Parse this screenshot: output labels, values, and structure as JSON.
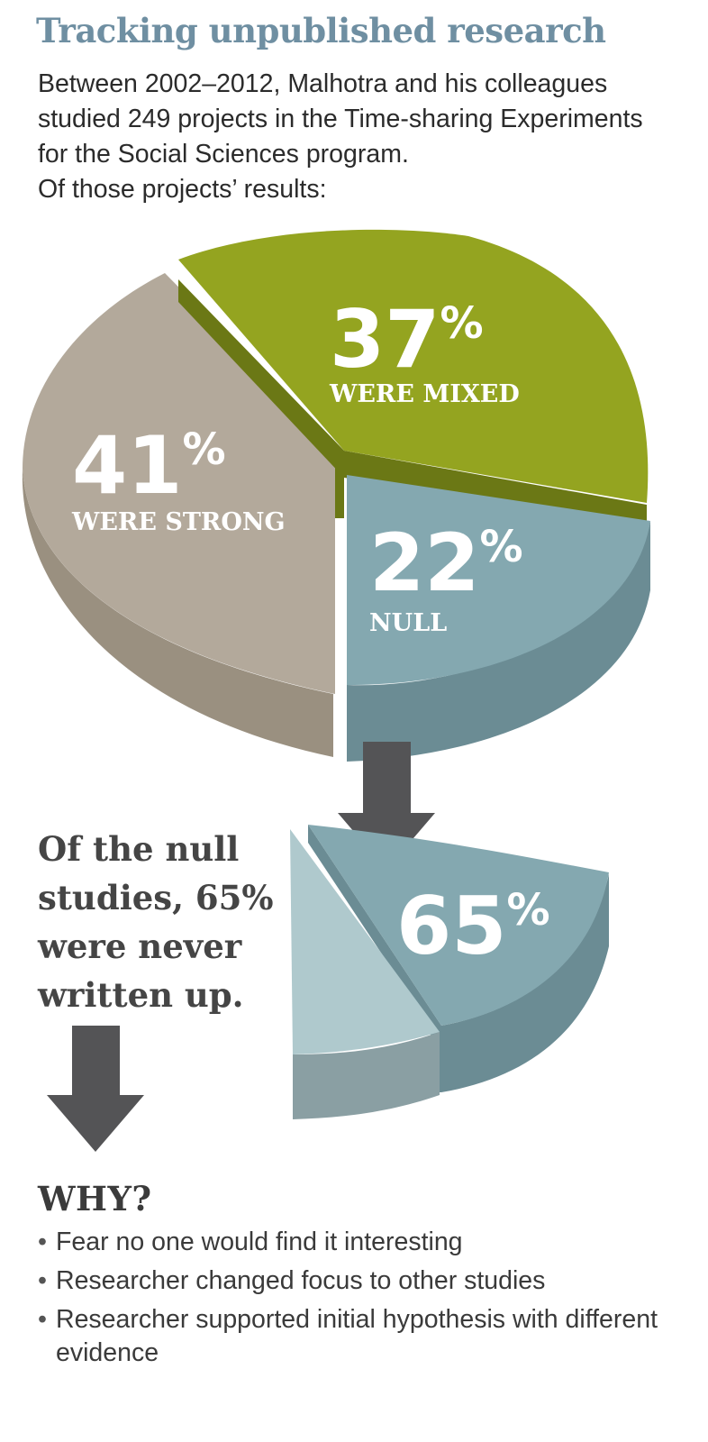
{
  "header": {
    "title": "Tracking unpublished research",
    "intro_lines": [
      "Between 2002–2012, Malhotra and his colleagues",
      "studied 249 projects in the Time-sharing Experiments",
      "for the Social Sciences program.",
      "Of those projects’ results:"
    ]
  },
  "chart_data": [
    {
      "type": "pie",
      "slices": [
        {
          "value": 41,
          "value_label": "41",
          "pct_sign": "%",
          "label": "WERE STRONG",
          "color": "#b3a99b"
        },
        {
          "value": 37,
          "value_label": "37",
          "pct_sign": "%",
          "label": "WERE MIXED",
          "color": "#94a420"
        },
        {
          "value": 22,
          "value_label": "22",
          "pct_sign": "%",
          "label": "NULL",
          "color": "#84a8b0"
        }
      ]
    },
    {
      "type": "pie",
      "slices": [
        {
          "value": 65,
          "value_label": "65",
          "pct_sign": "%",
          "label": "",
          "color": "#84a8b0"
        },
        {
          "value": 35,
          "value_label": "",
          "pct_sign": "",
          "label": "",
          "color": "#afc9cd"
        }
      ]
    }
  ],
  "null_note_lines": [
    "Of the null",
    "studies, 65%",
    "were never",
    "written up."
  ],
  "why": {
    "heading": "WHY?",
    "reasons": [
      "Fear no one would find it interesting",
      "Researcher changed focus to other studies",
      "Researcher supported initial hypothesis with different evidence"
    ]
  },
  "colors": {
    "arrow": "#545456",
    "title": "#6f8fa2"
  }
}
